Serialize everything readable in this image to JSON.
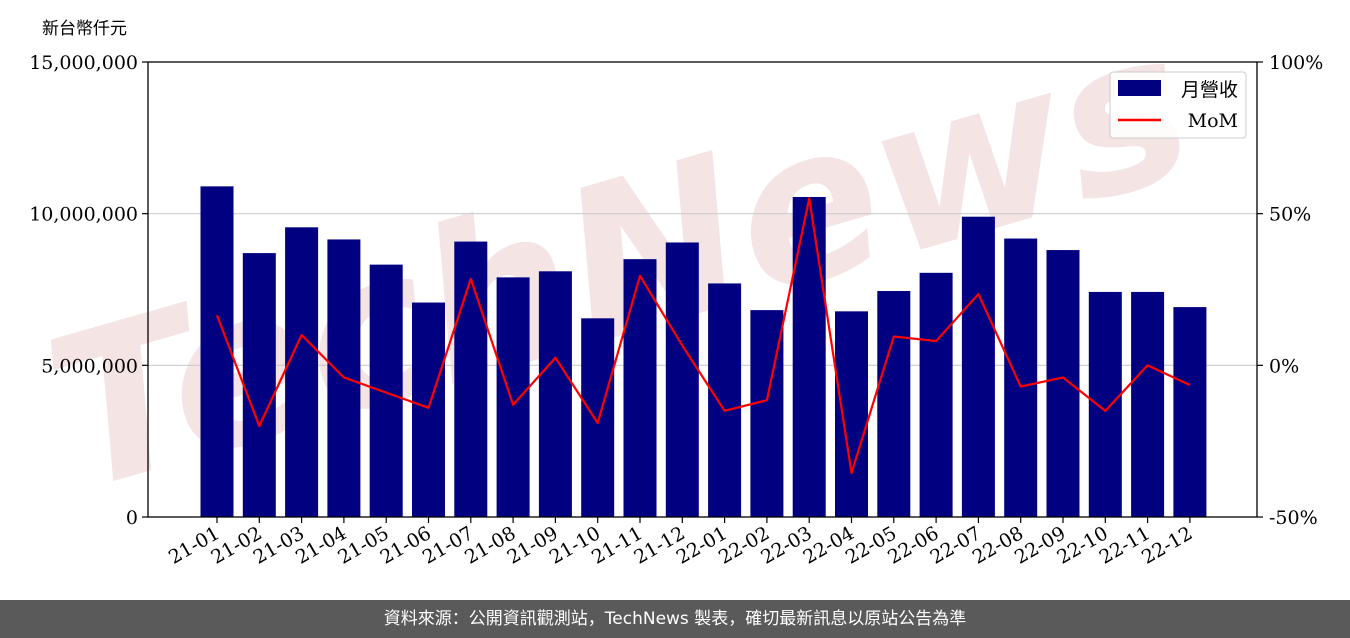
{
  "chart_data": {
    "type": "bar",
    "unit_label": "新台幣仟元",
    "categories": [
      "21-01",
      "21-02",
      "21-03",
      "21-04",
      "21-05",
      "21-06",
      "21-07",
      "21-08",
      "21-09",
      "21-10",
      "21-11",
      "21-12",
      "22-01",
      "22-02",
      "22-03",
      "22-04",
      "22-05",
      "22-06",
      "22-07",
      "22-08",
      "22-09",
      "22-10",
      "22-11",
      "22-12"
    ],
    "series": [
      {
        "name": "月營收",
        "axis": "left",
        "type": "bar",
        "color": "#000080",
        "values": [
          10900000,
          8700000,
          9550000,
          9150000,
          8320000,
          7070000,
          9080000,
          7900000,
          8100000,
          6550000,
          8500000,
          9050000,
          7700000,
          6820000,
          10550000,
          6780000,
          7450000,
          8050000,
          9900000,
          9180000,
          8800000,
          7420000,
          7420000,
          6920000
        ]
      },
      {
        "name": "MoM",
        "axis": "right",
        "type": "line",
        "color": "#ff0000",
        "values": [
          16.5,
          -20,
          10,
          -4,
          -9,
          -14,
          28.5,
          -13,
          2.5,
          -19,
          29.5,
          6.5,
          -15,
          -11.5,
          55,
          -35.5,
          9.5,
          8,
          23.5,
          -7,
          -4,
          -15,
          0,
          -6.5
        ]
      }
    ],
    "left_axis": {
      "ylim": [
        0,
        15000000
      ],
      "ticks": [
        "0",
        "5,000,000",
        "10,000,000",
        "15,000,000"
      ]
    },
    "right_axis": {
      "ylim": [
        -50,
        100
      ],
      "ticks": [
        "-50%",
        "0%",
        "50%",
        "100%"
      ]
    },
    "grid": true,
    "legend_position": "top-right"
  },
  "footer": {
    "text": "資料來源：公開資訊觀測站，TechNews 製表，確切最新訊息以原站公告為準"
  },
  "watermark": {
    "text": "TechNews"
  }
}
